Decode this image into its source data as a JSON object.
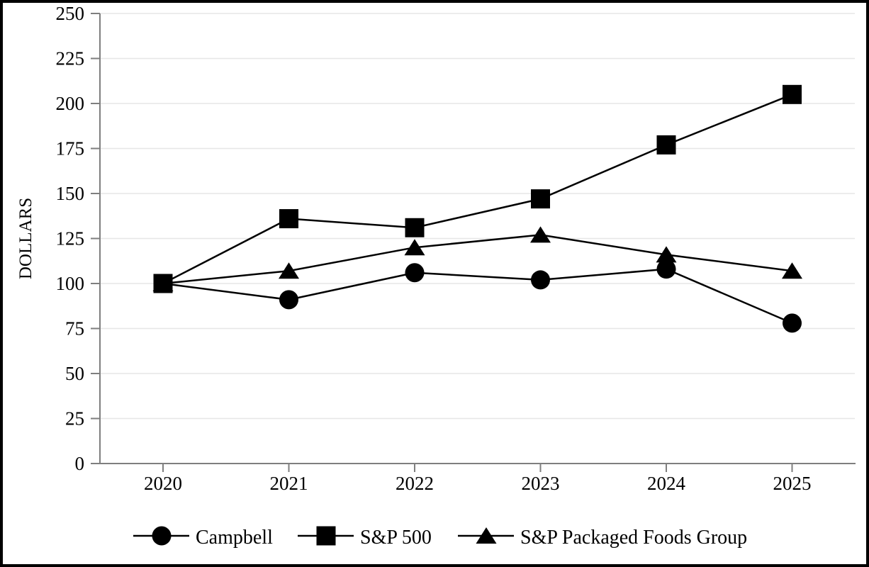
{
  "chart_data": {
    "type": "line",
    "title": "",
    "ylabel": "DOLLARS",
    "xlabel": "",
    "categories": [
      "2020",
      "2021",
      "2022",
      "2023",
      "2024",
      "2025"
    ],
    "series": [
      {
        "name": "Campbell",
        "marker": "circle",
        "values": [
          100,
          91,
          106,
          102,
          108,
          78
        ]
      },
      {
        "name": "S&P 500",
        "marker": "square",
        "values": [
          100,
          136,
          131,
          147,
          177,
          205
        ]
      },
      {
        "name": "S&P Packaged Foods Group",
        "marker": "triangle",
        "values": [
          100,
          107,
          120,
          127,
          116,
          107
        ]
      }
    ],
    "ylim": [
      0,
      250
    ],
    "yticks": [
      0,
      25,
      50,
      75,
      100,
      125,
      150,
      175,
      200,
      225,
      250
    ],
    "grid": true,
    "legend_position": "bottom",
    "colors": {
      "series": "#000000",
      "axis": "#7f7f7f",
      "gridline": "#e6e6e6",
      "text": "#000000",
      "background": "#ffffff",
      "frame_border": "#000000"
    }
  }
}
